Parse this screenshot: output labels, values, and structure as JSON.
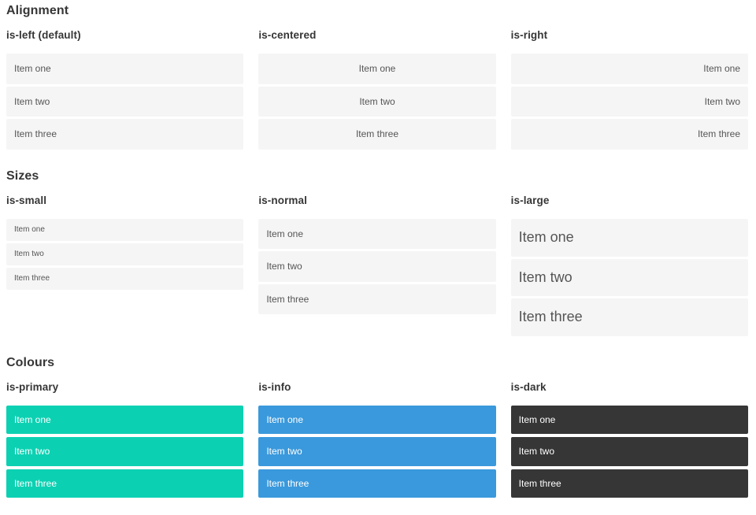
{
  "sections": [
    {
      "title": "Alignment",
      "variants": [
        {
          "label": "is-left (default)",
          "align": "left",
          "size": "normal",
          "color": "default",
          "items": [
            "Item one",
            "Item two",
            "Item three"
          ]
        },
        {
          "label": "is-centered",
          "align": "center",
          "size": "normal",
          "color": "default",
          "items": [
            "Item one",
            "Item two",
            "Item three"
          ]
        },
        {
          "label": "is-right",
          "align": "right",
          "size": "normal",
          "color": "default",
          "items": [
            "Item one",
            "Item two",
            "Item three"
          ]
        }
      ]
    },
    {
      "title": "Sizes",
      "variants": [
        {
          "label": "is-small",
          "align": "left",
          "size": "small",
          "color": "default",
          "items": [
            "Item one",
            "Item two",
            "Item three"
          ]
        },
        {
          "label": "is-normal",
          "align": "left",
          "size": "normal",
          "color": "default",
          "items": [
            "Item one",
            "Item two",
            "Item three"
          ]
        },
        {
          "label": "is-large",
          "align": "left",
          "size": "large",
          "color": "default",
          "items": [
            "Item one",
            "Item two",
            "Item three"
          ]
        }
      ]
    },
    {
      "title": "Colours",
      "variants": [
        {
          "label": "is-primary",
          "align": "left",
          "size": "normal",
          "color": "primary",
          "items": [
            "Item one",
            "Item two",
            "Item three"
          ]
        },
        {
          "label": "is-info",
          "align": "left",
          "size": "normal",
          "color": "info",
          "items": [
            "Item one",
            "Item two",
            "Item three"
          ]
        },
        {
          "label": "is-dark",
          "align": "left",
          "size": "normal",
          "color": "dark",
          "items": [
            "Item one",
            "Item two",
            "Item three"
          ]
        }
      ]
    }
  ],
  "colors": {
    "primary": "#0bd1b2",
    "info": "#3a99dc",
    "dark": "#363636",
    "item_background": "#f5f5f5",
    "item_text": "#555555",
    "heading_text": "#363636",
    "colored_item_text": "#ffffff"
  }
}
